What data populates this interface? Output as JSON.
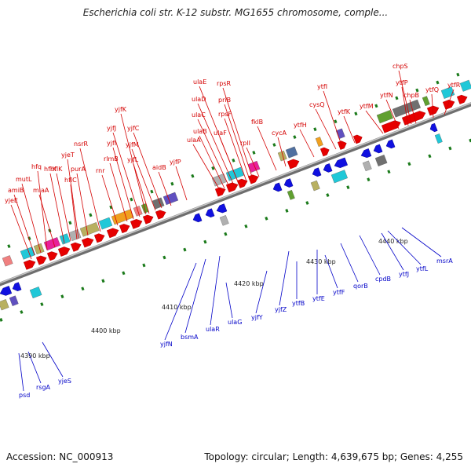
{
  "title": "Escherichia coli str. K-12 substr. MG1655 chromosome, comple...",
  "footer": {
    "accession": "Accession: NC_000913",
    "summary": "Topology: circular; Length: 4,639,675 bp; Genes: 4,255"
  },
  "colors": {
    "forward_label": "#d40000",
    "reverse_label": "#0000c8",
    "forward_arrow": "#e60000",
    "reverse_arrow": "#1010e0",
    "axis": "#8a8a8a",
    "kbp_tick": "#1a7a1a",
    "cog_cyan": "#20c8d8",
    "cog_magenta": "#e8209a",
    "cog_orange": "#f0a020",
    "cog_olive": "#b8b060",
    "cog_gray": "#b0b0b0",
    "cog_darkgray": "#707070",
    "cog_green": "#60a030",
    "cog_purple": "#6050c0",
    "cog_steel": "#5070a0",
    "cog_pink": "#f08080"
  },
  "kbp_labels": [
    "4390 kbp",
    "4400 kbp",
    "4410 kbp",
    "4420 kbp",
    "4430 kbp",
    "4440 kbp"
  ],
  "forward_genes": [
    "yjeE",
    "amiB",
    "mutL",
    "miaA",
    "hfq",
    "hflX",
    "hflK",
    "yjeT",
    "hflC",
    "purA",
    "nsrR",
    "rnr",
    "rlmB",
    "yjfI",
    "yjfJ",
    "yjfK",
    "yjfL",
    "yjfM",
    "yjfC",
    "aidB",
    "yjfP",
    "ulaA",
    "ulaB",
    "ulaC",
    "ulaD",
    "ulaE",
    "ulaF",
    "rpsF",
    "priB",
    "rpsR",
    "rplI",
    "fklB",
    "cycA",
    "ytfH",
    "cysQ",
    "ytfI",
    "ytfK",
    "ytfM",
    "ytfN",
    "ytfP",
    "chpB",
    "chpS",
    "ytfQ",
    "ytfR"
  ],
  "reverse_genes": [
    "psd",
    "rsgA",
    "yjeS",
    "yjfN",
    "bsmA",
    "ulaR",
    "ulaG",
    "yjfY",
    "yjfZ",
    "ytfB",
    "ytfE",
    "ytfF",
    "qorB",
    "cpdB",
    "ytfJ",
    "ytfL",
    "msrA"
  ]
}
